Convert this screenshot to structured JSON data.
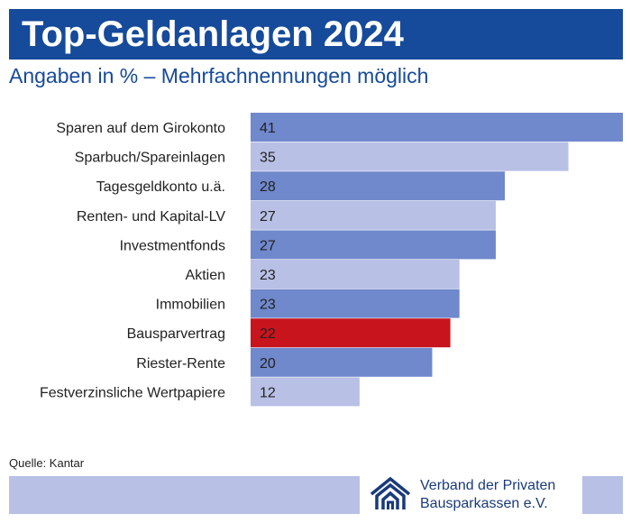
{
  "header": {
    "title": "Top-Geldanlagen 2024",
    "subtitle": "Angaben in % – Mehrfachnennungen möglich"
  },
  "chart_data": {
    "type": "bar",
    "orientation": "horizontal",
    "title": "Top-Geldanlagen 2024",
    "subtitle": "Angaben in % – Mehrfachnennungen möglich",
    "categories": [
      "Sparen auf dem Girokonto",
      "Sparbuch/Spareinlagen",
      "Tagesgeldkonto u.ä.",
      "Renten- und Kapital-LV",
      "Investmentfonds",
      "Aktien",
      "Immobilien",
      "Bausparvertrag",
      "Riester-Rente",
      "Festverzinsliche Wertpapiere"
    ],
    "values": [
      41,
      35,
      28,
      27,
      27,
      23,
      23,
      22,
      20,
      12
    ],
    "unit": "%",
    "xlim": [
      0,
      41
    ],
    "grid": false,
    "legend": "none",
    "colors": {
      "dark": "#7088cc",
      "light": "#b8c0e6",
      "highlight": "#c8141c"
    },
    "bar_colors": [
      "dark",
      "light",
      "dark",
      "light",
      "dark",
      "light",
      "dark",
      "highlight",
      "dark",
      "light"
    ]
  },
  "footer": {
    "source": "Quelle: Kantar",
    "logo_icon": "house-icon",
    "logo_line1": "Verband der Privaten",
    "logo_line2": "Bausparkassen e.V."
  }
}
